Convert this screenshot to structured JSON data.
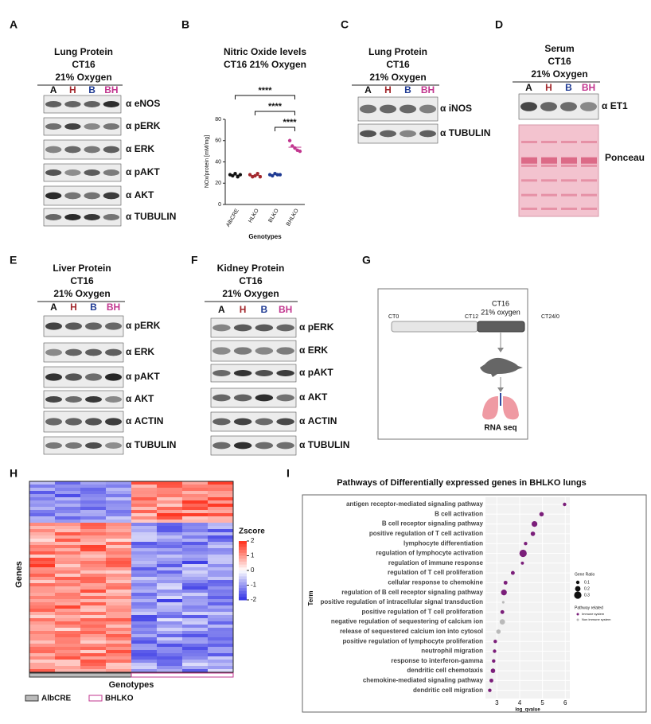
{
  "panel_labels": [
    "A",
    "B",
    "C",
    "D",
    "E",
    "F",
    "G",
    "H",
    "I"
  ],
  "blot_A": {
    "title": [
      "Lung Protein",
      "CT16",
      "21% Oxygen"
    ],
    "lanes": [
      "A",
      "H",
      "B",
      "BH"
    ],
    "antibodies": [
      "α eNOS",
      "α pERK",
      "α ERK",
      "α pAKT",
      "α AKT",
      "α TUBULIN"
    ]
  },
  "blot_C": {
    "title": [
      "Lung Protein",
      "CT16",
      "21% Oxygen"
    ],
    "lanes": [
      "A",
      "H",
      "B",
      "BH"
    ],
    "antibodies": [
      "α iNOS",
      "α TUBULIN"
    ]
  },
  "blot_D": {
    "title": [
      "Serum",
      "CT16",
      "21% Oxygen"
    ],
    "lanes": [
      "A",
      "H",
      "B",
      "BH"
    ],
    "antibodies": [
      "α ET1"
    ],
    "stain": "Ponceau"
  },
  "blot_E": {
    "title": [
      "Liver Protein",
      "CT16",
      "21% Oxygen"
    ],
    "lanes": [
      "A",
      "H",
      "B",
      "BH"
    ],
    "antibodies": [
      "α pERK",
      "α ERK",
      "α pAKT",
      "α AKT",
      "α ACTIN",
      "α TUBULIN"
    ]
  },
  "blot_F": {
    "title": [
      "Kidney Protein",
      "CT16",
      "21% Oxygen"
    ],
    "lanes": [
      "A",
      "H",
      "B",
      "BH"
    ],
    "antibodies": [
      "α pERK",
      "α ERK",
      "α pAKT",
      "α AKT",
      "α ACTIN",
      "α TUBULIN"
    ]
  },
  "schematic_G": {
    "timeline_start": "CT0",
    "timeline_mid": "CT12",
    "phase": "CT16",
    "condition": "21% oxygen",
    "timeline_end": "CT24/0",
    "output": "RNA seq"
  },
  "heatmap_H": {
    "ylabel": "Genes",
    "xlabel": "Genotypes",
    "colorbar_title": "Zscore",
    "colorbar_ticks": [
      2,
      1,
      0,
      -1,
      -2
    ],
    "legend": [
      "AlbCRE",
      "BHLKO"
    ]
  },
  "chart_data": [
    {
      "type": "dotplot",
      "title": "Nitric Oxide levels",
      "subtitle": "CT16 21% Oxygen",
      "categories": [
        "AlbCRE",
        "HLKO",
        "BLKO",
        "BHLKO"
      ],
      "values": [
        [
          28,
          27,
          29,
          26,
          28
        ],
        [
          28,
          26,
          27,
          29,
          26
        ],
        [
          28,
          27,
          29,
          28,
          28
        ],
        [
          60,
          55,
          53,
          51,
          50
        ]
      ],
      "colors": [
        "#111111",
        "#a3292e",
        "#1f3a93",
        "#c2368f"
      ],
      "ylabel": "NOx/protein [mM/mg]",
      "xlabel": "Genotypes",
      "ylim": [
        0,
        80
      ],
      "yticks": [
        0,
        20,
        40,
        60,
        80
      ],
      "significance": [
        "****",
        "****",
        "****"
      ]
    },
    {
      "type": "bubble",
      "title": "Pathways of Differentially expressed genes in BHLKO lungs",
      "ylabel": "Term",
      "xlabel": "log_qvalue",
      "categories": [
        "antigen receptor-mediated signaling pathway",
        "B cell activation",
        "B cell receptor signaling pathway",
        "positive regulation of T cell activation",
        "lymphocyte differentiation",
        "regulation of lymphocyte activation",
        "regulation of immune response",
        "regulation of T cell proliferation",
        "cellular response to chemokine",
        "regulation of B cell receptor signaling pathway",
        "positive regulation of intracellular signal transduction",
        "positive regulation of T cell proliferation",
        "negative regulation of sequestering of calcium ion",
        "release of sequestered calcium ion into cytosol",
        "positive regulation of lymphocyte proliferation",
        "neutrophil migration",
        "response to interferon-gamma",
        "dendritic cell chemotaxis",
        "chemokine-mediated signaling pathway",
        "dendritic cell migration"
      ],
      "values": [
        5.97,
        4.96,
        4.65,
        4.58,
        4.26,
        4.15,
        4.12,
        3.7,
        3.38,
        3.31,
        3.28,
        3.24,
        3.24,
        3.07,
        2.93,
        2.9,
        2.86,
        2.83,
        2.76,
        2.69
      ],
      "sizes": [
        0.1,
        0.15,
        0.22,
        0.15,
        0.1,
        0.3,
        0.08,
        0.12,
        0.12,
        0.22,
        0.05,
        0.12,
        0.2,
        0.15,
        0.1,
        0.1,
        0.1,
        0.15,
        0.12,
        0.1
      ],
      "groups": [
        "Immune system",
        "Immune system",
        "Immune system",
        "Immune system",
        "Immune system",
        "Immune system",
        "Immune system",
        "Immune system",
        "Immune system",
        "Immune system",
        "Non immune system",
        "Immune system",
        "Non immune system",
        "Non immune system",
        "Immune system",
        "Immune system",
        "Immune system",
        "Immune system",
        "Immune system",
        "Immune system"
      ],
      "group_colors": {
        "Immune system": "#7b1f7a",
        "Non immune system": "#b9b9b9"
      },
      "size_legend_title": "Gene Ratio",
      "size_legend": [
        0.1,
        0.2,
        0.3
      ],
      "color_legend_title": "Pathway related",
      "color_legend": [
        "Immune system",
        "Non immune system"
      ],
      "xlim": [
        2.5,
        6.2
      ],
      "xticks": [
        3,
        4,
        5,
        6
      ],
      "grid": true
    }
  ]
}
